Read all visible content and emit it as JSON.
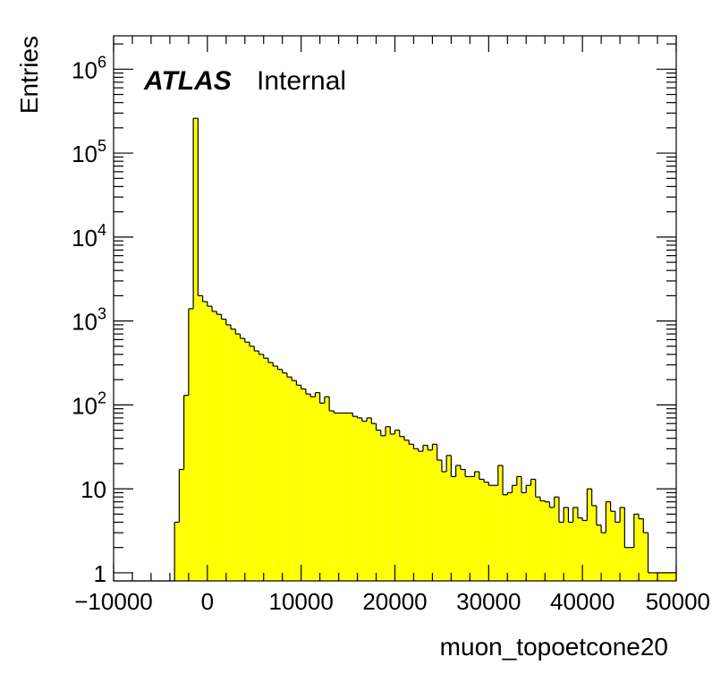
{
  "chart_data": {
    "type": "histogram",
    "xlabel": "muon_topoetcone20",
    "ylabel": "Entries",
    "label": {
      "experiment": "ATLAS",
      "status": "Internal"
    },
    "xlim": [
      -10000,
      50000
    ],
    "ylim": [
      0.8,
      2500000
    ],
    "yscale": "log",
    "fill_color": "#ffff00",
    "line_color": "#000000",
    "grid": false,
    "bin_start": -10000,
    "bin_width": 500,
    "counts": [
      0,
      0,
      0,
      0,
      0,
      0,
      0,
      0,
      0,
      0,
      0,
      0,
      0,
      4,
      17,
      130,
      1400,
      260000,
      2000,
      1700,
      1500,
      1300,
      1200,
      1050,
      900,
      800,
      700,
      620,
      560,
      500,
      440,
      400,
      360,
      320,
      290,
      265,
      240,
      215,
      195,
      172,
      155,
      135,
      125,
      140,
      105,
      125,
      85,
      80,
      80,
      80,
      80,
      73,
      70,
      64,
      70,
      60,
      50,
      43,
      55,
      45,
      50,
      42,
      38,
      34,
      30,
      28,
      33,
      29,
      34,
      22,
      16,
      25,
      14,
      19,
      17,
      14,
      14,
      16,
      13,
      12,
      11,
      11,
      19,
      8.5,
      9,
      11,
      14,
      9,
      11,
      13,
      8,
      7.2,
      7,
      6,
      8,
      4,
      6,
      4,
      6,
      4.5,
      4.2,
      10,
      6.3,
      3.7,
      3,
      7,
      5.4,
      4,
      6,
      2,
      2,
      5,
      4.4,
      3,
      1,
      1,
      1,
      1,
      1,
      1
    ]
  },
  "x_ticks": [
    {
      "value": -10000,
      "label": "−10000"
    },
    {
      "value": 0,
      "label": "0"
    },
    {
      "value": 10000,
      "label": "10000"
    },
    {
      "value": 20000,
      "label": "20000"
    },
    {
      "value": 30000,
      "label": "30000"
    },
    {
      "value": 40000,
      "label": "40000"
    },
    {
      "value": 50000,
      "label": "50000"
    }
  ],
  "y_ticks": [
    {
      "value": 1,
      "base": "1",
      "exp": ""
    },
    {
      "value": 10,
      "base": "10",
      "exp": ""
    },
    {
      "value": 100,
      "base": "10",
      "exp": "2"
    },
    {
      "value": 1000,
      "base": "10",
      "exp": "3"
    },
    {
      "value": 10000,
      "base": "10",
      "exp": "4"
    },
    {
      "value": 100000,
      "base": "10",
      "exp": "5"
    },
    {
      "value": 1000000,
      "base": "10",
      "exp": "6"
    }
  ]
}
